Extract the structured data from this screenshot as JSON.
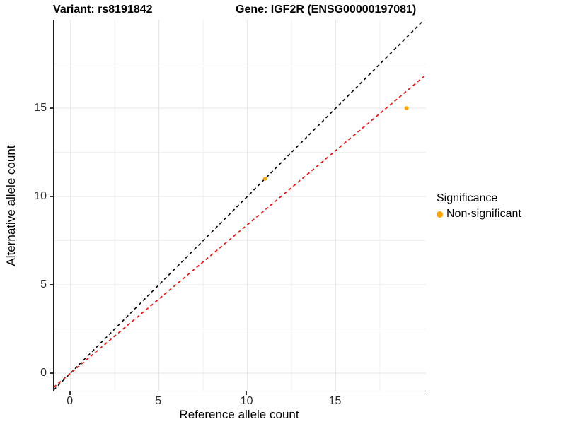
{
  "titles": {
    "variant": "Variant: rs8191842",
    "gene": "Gene: IGF2R (ENSG00000197081)"
  },
  "axes": {
    "x": {
      "label": "Reference allele count",
      "tick_labels": [
        "0",
        "5",
        "10",
        "15"
      ]
    },
    "y": {
      "label": "Alternative allele count",
      "tick_labels": [
        "0",
        "5",
        "10",
        "15"
      ]
    }
  },
  "legend": {
    "title": "Significance",
    "items": [
      {
        "label": "Non-significant",
        "color": "#FFA500"
      }
    ]
  },
  "colors": {
    "point": "#FFA500",
    "identity_line": "#000000",
    "fit_line": "#FF0000",
    "grid_major": "#e4e4e4",
    "grid_minor": "#f0f0f0"
  },
  "chart_data": {
    "type": "scatter",
    "title": "Variant: rs8191842   Gene: IGF2R (ENSG00000197081)",
    "xlabel": "Reference allele count",
    "ylabel": "Alternative allele count",
    "xlim": [
      -0.95,
      20.1
    ],
    "ylim": [
      -1,
      20
    ],
    "xticks": [
      0,
      5,
      10,
      15
    ],
    "yticks": [
      0,
      5,
      10,
      15
    ],
    "minor_tick_step": 2.5,
    "grid": "major+minor",
    "legend_position": "right",
    "series": [
      {
        "name": "Non-significant",
        "color": "#FFA500",
        "marker": "circle",
        "points": [
          {
            "x": 11,
            "y": 11
          },
          {
            "x": 19,
            "y": 15
          }
        ]
      }
    ],
    "ablines": [
      {
        "name": "identity-line",
        "slope": 1,
        "intercept": 0,
        "color": "#000000",
        "linestyle": "dashed"
      },
      {
        "name": "ratio-fit-line",
        "slope": 0.84,
        "intercept": 0,
        "color": "#FF0000",
        "linestyle": "dashed"
      }
    ]
  }
}
